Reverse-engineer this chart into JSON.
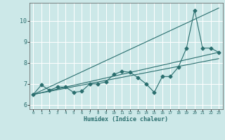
{
  "xlabel": "Humidex (Indice chaleur)",
  "ylabel": "",
  "xlim": [
    -0.5,
    23.5
  ],
  "ylim": [
    5.8,
    10.85
  ],
  "yticks": [
    6,
    7,
    8,
    9,
    10
  ],
  "xticks": [
    0,
    1,
    2,
    3,
    4,
    5,
    6,
    7,
    8,
    9,
    10,
    11,
    12,
    13,
    14,
    15,
    16,
    17,
    18,
    19,
    20,
    21,
    22,
    23
  ],
  "bg_color": "#cce8e8",
  "grid_color": "#ffffff",
  "line_color": "#2a6e6e",
  "lines": [
    {
      "x": [
        0,
        1,
        2,
        3,
        4,
        5,
        6,
        7,
        8,
        9,
        10,
        11,
        12,
        13,
        14,
        15,
        16,
        17,
        18,
        19,
        20,
        21,
        22,
        23
      ],
      "y": [
        6.5,
        6.95,
        6.7,
        6.85,
        6.85,
        6.6,
        6.65,
        7.0,
        7.0,
        7.1,
        7.45,
        7.6,
        7.55,
        7.3,
        7.0,
        6.6,
        7.35,
        7.35,
        7.8,
        8.7,
        10.5,
        8.7,
        8.7,
        8.5
      ],
      "marker": "D",
      "markersize": 2.5
    },
    {
      "x": [
        0,
        23
      ],
      "y": [
        6.5,
        8.5
      ],
      "marker": null,
      "markersize": 0
    },
    {
      "x": [
        0,
        23
      ],
      "y": [
        6.5,
        8.2
      ],
      "marker": null,
      "markersize": 0
    },
    {
      "x": [
        0,
        23
      ],
      "y": [
        6.5,
        10.6
      ],
      "marker": null,
      "markersize": 0
    }
  ]
}
